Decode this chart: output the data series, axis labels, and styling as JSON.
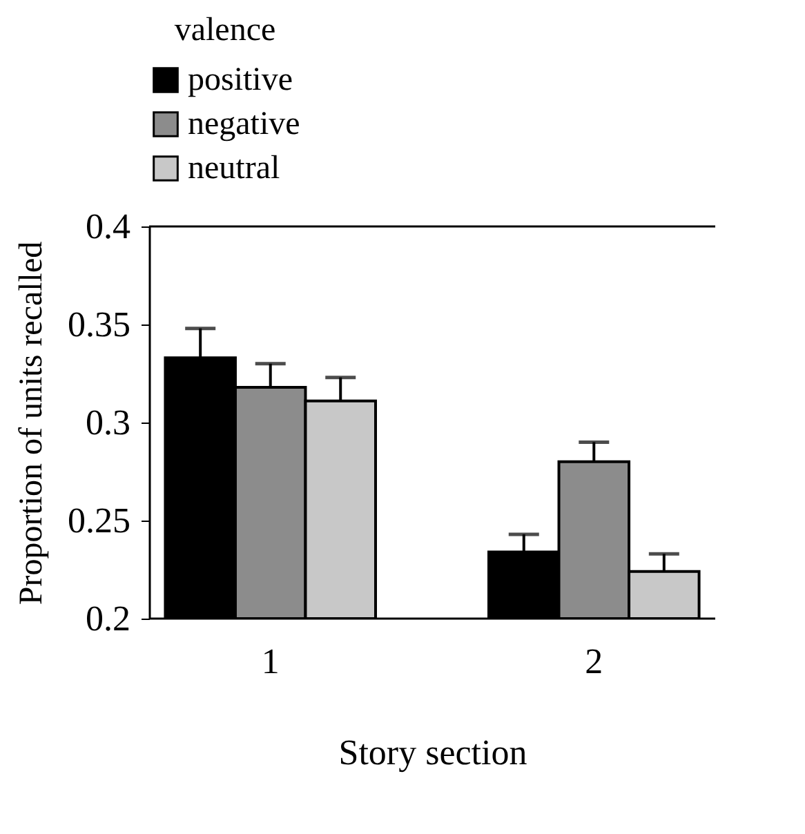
{
  "chart_data": {
    "type": "bar",
    "xlabel": "Story section",
    "ylabel": "Proportion of units recalled",
    "legend_title": "valence",
    "categories": [
      "1",
      "2"
    ],
    "series": [
      {
        "name": "positive",
        "color": "#000000",
        "values": [
          0.333,
          0.234
        ],
        "errors": [
          [
            0.333,
            0.348
          ],
          [
            0.234,
            0.243
          ]
        ]
      },
      {
        "name": "negative",
        "color": "#8c8c8c",
        "values": [
          0.318,
          0.28
        ],
        "errors": [
          [
            0.318,
            0.33
          ],
          [
            0.28,
            0.29
          ]
        ]
      },
      {
        "name": "neutral",
        "color": "#c8c8c8",
        "values": [
          0.311,
          0.224
        ],
        "errors": [
          [
            0.311,
            0.323
          ],
          [
            0.224,
            0.233
          ]
        ]
      }
    ],
    "ylim": [
      0.2,
      0.4
    ],
    "yticks": [
      0.2,
      0.25,
      0.3,
      0.35,
      0.4
    ],
    "grid": false,
    "legend": "top"
  }
}
